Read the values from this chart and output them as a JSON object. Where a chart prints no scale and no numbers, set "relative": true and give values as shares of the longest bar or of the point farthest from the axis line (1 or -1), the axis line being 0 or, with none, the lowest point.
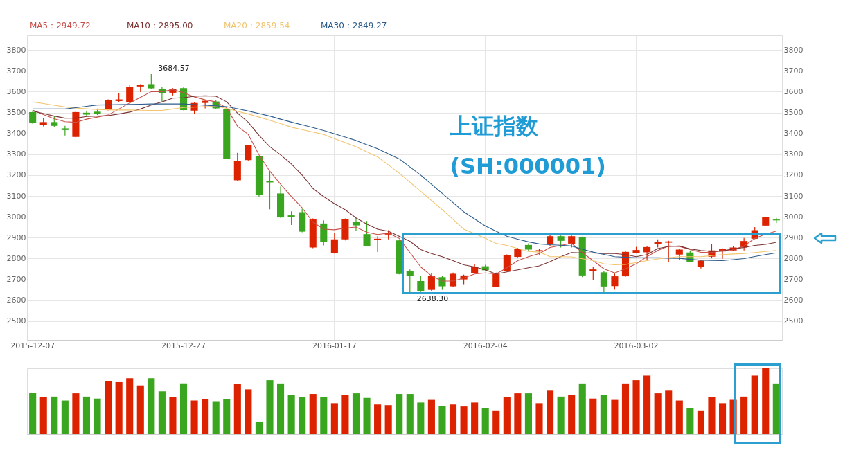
{
  "chart_data": [
    {
      "type": "candlestick",
      "categories": [
        "2015-12-07",
        null,
        null,
        null,
        null,
        null,
        null,
        null,
        null,
        null,
        null,
        null,
        null,
        null,
        "2015-12-27",
        null,
        null,
        null,
        null,
        null,
        null,
        null,
        null,
        null,
        null,
        null,
        null,
        null,
        "2016-01-17",
        null,
        null,
        null,
        null,
        null,
        null,
        null,
        null,
        null,
        null,
        null,
        null,
        null,
        "2016-02-04",
        null,
        null,
        null,
        null,
        null,
        null,
        null,
        null,
        null,
        null,
        null,
        null,
        null,
        "2016-03-02",
        null,
        null,
        null,
        null,
        null,
        null,
        null,
        null,
        null,
        null,
        null,
        null,
        null
      ],
      "ohlc": [
        [
          3502,
          3510,
          3445,
          3449
        ],
        [
          3441,
          3475,
          3434,
          3454
        ],
        [
          3454,
          3483,
          3429,
          3436
        ],
        [
          3424,
          3436,
          3390,
          3416
        ],
        [
          3383,
          3505,
          3380,
          3502
        ],
        [
          3499,
          3509,
          3480,
          3490
        ],
        [
          3504,
          3519,
          3488,
          3495
        ],
        [
          3512,
          3563,
          3510,
          3561
        ],
        [
          3555,
          3595,
          3549,
          3563
        ],
        [
          3549,
          3631,
          3546,
          3624
        ],
        [
          3625,
          3633,
          3598,
          3631
        ],
        [
          3633,
          3684.57,
          3614,
          3616
        ],
        [
          3614,
          3621,
          3553,
          3592
        ],
        [
          3595,
          3617,
          3582,
          3612
        ],
        [
          3617,
          3621,
          3510,
          3512
        ],
        [
          3509,
          3548,
          3495,
          3546
        ],
        [
          3546,
          3559,
          3520,
          3556
        ],
        [
          3553,
          3559,
          3518,
          3520
        ],
        [
          3517,
          3520,
          3276,
          3276
        ],
        [
          3175,
          3307,
          3170,
          3268
        ],
        [
          3272,
          3346,
          3270,
          3344
        ],
        [
          3291,
          3293,
          3097,
          3104
        ],
        [
          3172,
          3214,
          3036,
          3165
        ],
        [
          3112,
          3146,
          2995,
          2997
        ],
        [
          3007,
          3026,
          2961,
          2999
        ],
        [
          3022,
          3039,
          2926,
          2929
        ],
        [
          2853,
          2992,
          2850,
          2990
        ],
        [
          2968,
          2983,
          2863,
          2881
        ],
        [
          2826,
          2922,
          2824,
          2892
        ],
        [
          2892,
          2992,
          2887,
          2990
        ],
        [
          2975,
          2995,
          2934,
          2959
        ],
        [
          2917,
          2980,
          2859,
          2861
        ],
        [
          2889,
          2907,
          2831,
          2895
        ],
        [
          2915,
          2936,
          2892,
          2922
        ],
        [
          2887,
          2890,
          2724,
          2726
        ],
        [
          2739,
          2748,
          2638.3,
          2717
        ],
        [
          2692,
          2716,
          2640,
          2642
        ],
        [
          2650,
          2731,
          2645,
          2716
        ],
        [
          2711,
          2716,
          2650,
          2667
        ],
        [
          2667,
          2733,
          2665,
          2727
        ],
        [
          2700,
          2723,
          2677,
          2719
        ],
        [
          2731,
          2772,
          2729,
          2760
        ],
        [
          2763,
          2770,
          2742,
          2744
        ],
        [
          2665,
          2733,
          2662,
          2726
        ],
        [
          2739,
          2820,
          2737,
          2817
        ],
        [
          2808,
          2851,
          2806,
          2848
        ],
        [
          2865,
          2873,
          2838,
          2843
        ],
        [
          2834,
          2848,
          2819,
          2840
        ],
        [
          2868,
          2912,
          2860,
          2907
        ],
        [
          2907,
          2910,
          2853,
          2885
        ],
        [
          2870,
          2910,
          2853,
          2907
        ],
        [
          2902,
          2905,
          2711,
          2719
        ],
        [
          2739,
          2760,
          2697,
          2748
        ],
        [
          2734,
          2742,
          2639,
          2666
        ],
        [
          2668,
          2728,
          2651,
          2715
        ],
        [
          2715,
          2836,
          2713,
          2832
        ],
        [
          2827,
          2856,
          2825,
          2841
        ],
        [
          2830,
          2858,
          2790,
          2855
        ],
        [
          2868,
          2892,
          2853,
          2880
        ],
        [
          2876,
          2885,
          2782,
          2882
        ],
        [
          2819,
          2846,
          2795,
          2843
        ],
        [
          2829,
          2839,
          2783,
          2785
        ],
        [
          2760,
          2792,
          2753,
          2790
        ],
        [
          2809,
          2868,
          2801,
          2839
        ],
        [
          2834,
          2849,
          2799,
          2846
        ],
        [
          2839,
          2858,
          2836,
          2853
        ],
        [
          2853,
          2899,
          2839,
          2884
        ],
        [
          2895,
          2951,
          2893,
          2936
        ],
        [
          2958,
          3001,
          2954,
          2999
        ],
        [
          2987,
          2995,
          2970,
          2983
        ]
      ],
      "colors": [
        "#3aa51e",
        "#dd2200",
        "#3aa51e",
        "#3aa51e",
        "#dd2200",
        "#3aa51e",
        "#3aa51e",
        "#dd2200",
        "#dd2200",
        "#dd2200",
        "#dd2200",
        "#3aa51e",
        "#3aa51e",
        "#dd2200",
        "#3aa51e",
        "#dd2200",
        "#dd2200",
        "#3aa51e",
        "#3aa51e",
        "#dd2200",
        "#dd2200",
        "#3aa51e",
        "#3aa51e",
        "#3aa51e",
        "#3aa51e",
        "#3aa51e",
        "#dd2200",
        "#3aa51e",
        "#dd2200",
        "#dd2200",
        "#3aa51e",
        "#3aa51e",
        "#dd2200",
        "#dd2200",
        "#3aa51e",
        "#3aa51e",
        "#3aa51e",
        "#dd2200",
        "#3aa51e",
        "#dd2200",
        "#dd2200",
        "#dd2200",
        "#3aa51e",
        "#dd2200",
        "#dd2200",
        "#dd2200",
        "#3aa51e",
        "#dd2200",
        "#dd2200",
        "#3aa51e",
        "#dd2200",
        "#3aa51e",
        "#dd2200",
        "#3aa51e",
        "#dd2200",
        "#dd2200",
        "#dd2200",
        "#dd2200",
        "#dd2200",
        "#dd2200",
        "#dd2200",
        "#3aa51e",
        "#dd2200",
        "#dd2200",
        "#dd2200",
        "#dd2200",
        "#dd2200",
        "#dd2200",
        "#dd2200",
        "#3aa51e"
      ],
      "series": [
        {
          "name": "MA5：2949.72",
          "color": "#c9504a",
          "type": "line",
          "axis": "y2",
          "values": [
            3512,
            3490,
            3470,
            3456,
            3453,
            3468,
            3478,
            3488,
            3517,
            3546,
            3573,
            3600,
            3600,
            3610,
            3595,
            3575,
            3561,
            3551,
            3522,
            3434,
            3395,
            3297,
            3219,
            3156,
            3097,
            3043,
            2975,
            2941,
            2938,
            2946,
            2951,
            2926,
            2915,
            2922,
            2897,
            2829,
            2760,
            2717,
            2692,
            2692,
            2707,
            2726,
            2731,
            2726,
            2756,
            2790,
            2809,
            2824,
            2853,
            2863,
            2873,
            2829,
            2790,
            2751,
            2731,
            2751,
            2775,
            2809,
            2839,
            2860,
            2858,
            2843,
            2830,
            2829,
            2839,
            2843,
            2860,
            2897,
            2917,
            2932
          ]
        },
        {
          "name": "MA10：2895.00",
          "color": "#7b3434",
          "type": "line",
          "axis": "y2",
          "values": [
            3507,
            3495,
            3483,
            3473,
            3473,
            3481,
            3483,
            3485,
            3493,
            3502,
            3517,
            3536,
            3551,
            3569,
            3571,
            3578,
            3580,
            3578,
            3551,
            3497,
            3453,
            3390,
            3336,
            3297,
            3253,
            3200,
            3136,
            3097,
            3063,
            3034,
            2995,
            2965,
            2941,
            2931,
            2907,
            2883,
            2843,
            2824,
            2809,
            2790,
            2770,
            2760,
            2746,
            2726,
            2736,
            2746,
            2756,
            2765,
            2785,
            2809,
            2829,
            2827,
            2827,
            2824,
            2824,
            2819,
            2809,
            2819,
            2848,
            2858,
            2860,
            2846,
            2839,
            2834,
            2836,
            2846,
            2853,
            2863,
            2868,
            2878
          ]
        },
        {
          "name": "MA20：2859.54",
          "color": "#f2c46e",
          "type": "line",
          "axis": "y2",
          "values": [
            3551,
            3543,
            3535,
            3527,
            3522,
            3518,
            3514,
            3513,
            3512,
            3512,
            3511,
            3510,
            3510,
            3517,
            3524,
            3526,
            3528,
            3530,
            3520,
            3506,
            3493,
            3478,
            3463,
            3447,
            3430,
            3418,
            3406,
            3395,
            3375,
            3356,
            3336,
            3312,
            3288,
            3249,
            3210,
            3166,
            3122,
            3078,
            3034,
            2988,
            2941,
            2919,
            2897,
            2873,
            2863,
            2848,
            2834,
            2831,
            2809,
            2809,
            2808,
            2799,
            2790,
            2775,
            2770,
            2772,
            2781,
            2790,
            2798,
            2804,
            2809,
            2809,
            2809,
            2814,
            2819,
            2822,
            2824,
            2829,
            2834,
            2839
          ]
        },
        {
          "name": "MA30：2849.27",
          "color": "#2d5c8c",
          "type": "line",
          "axis": "y2",
          "values": [
            3517,
            3517,
            3517,
            3517,
            3523,
            3530,
            3536,
            3537,
            3538,
            3539,
            3540,
            3541,
            3541,
            3541,
            3541,
            3538,
            3535,
            3532,
            3528,
            3518,
            3507,
            3495,
            3483,
            3468,
            3454,
            3441,
            3428,
            3414,
            3398,
            3382,
            3366,
            3346,
            3327,
            3302,
            3278,
            3239,
            3200,
            3156,
            3112,
            3068,
            3024,
            2990,
            2956,
            2931,
            2907,
            2893,
            2880,
            2870,
            2866,
            2864,
            2860,
            2845,
            2831,
            2820,
            2809,
            2806,
            2804,
            2804,
            2804,
            2802,
            2801,
            2796,
            2792,
            2791,
            2790,
            2795,
            2800,
            2810,
            2819,
            2827
          ]
        }
      ],
      "ylim": [
        2410,
        3870
      ],
      "yticks": [
        2500,
        2600,
        2700,
        2800,
        2900,
        3000,
        3100,
        3200,
        3300,
        3400,
        3500,
        3600,
        3700,
        3800
      ],
      "y2lim": [
        2410,
        3870
      ],
      "y2ticks": [
        2500,
        2600,
        2700,
        2800,
        2900,
        3000,
        3100,
        3200,
        3300,
        3400,
        3500,
        3600,
        3700,
        3800
      ],
      "grid": true,
      "legend": "top left",
      "annotations": [
        "上证指数",
        "(SH:000001)",
        "3684.57",
        "2638.30"
      ]
    },
    {
      "type": "bar",
      "relative": true,
      "categories": [
        null,
        null,
        null,
        null,
        null,
        null,
        null,
        null,
        null,
        null,
        null,
        null,
        null,
        null,
        null,
        null,
        null,
        null,
        null,
        null,
        null,
        null,
        null,
        null,
        null,
        null,
        null,
        null,
        null,
        null,
        null,
        null,
        null,
        null,
        null,
        null,
        null,
        null,
        null,
        null,
        null,
        null,
        null,
        null,
        null,
        null,
        null,
        null,
        null,
        null,
        null,
        null,
        null,
        null,
        null,
        null,
        null,
        null,
        null,
        null,
        null,
        null,
        null,
        null,
        null,
        null,
        null,
        null,
        null,
        null
      ],
      "values": [
        0.63,
        0.56,
        0.57,
        0.51,
        0.62,
        0.57,
        0.54,
        0.8,
        0.79,
        0.85,
        0.74,
        0.85,
        0.65,
        0.56,
        0.77,
        0.51,
        0.53,
        0.5,
        0.53,
        0.76,
        0.68,
        0.19,
        0.82,
        0.77,
        0.59,
        0.56,
        0.61,
        0.56,
        0.47,
        0.59,
        0.62,
        0.55,
        0.45,
        0.44,
        0.61,
        0.61,
        0.48,
        0.52,
        0.43,
        0.45,
        0.42,
        0.48,
        0.39,
        0.36,
        0.56,
        0.62,
        0.62,
        0.47,
        0.66,
        0.57,
        0.6,
        0.77,
        0.54,
        0.59,
        0.52,
        0.77,
        0.82,
        0.89,
        0.62,
        0.66,
        0.51,
        0.39,
        0.36,
        0.56,
        0.47,
        0.52,
        0.57,
        0.89,
        1,
        0.77
      ],
      "colors": [
        "#3aa51e",
        "#dd2200",
        "#3aa51e",
        "#3aa51e",
        "#dd2200",
        "#3aa51e",
        "#3aa51e",
        "#dd2200",
        "#dd2200",
        "#dd2200",
        "#dd2200",
        "#3aa51e",
        "#3aa51e",
        "#dd2200",
        "#3aa51e",
        "#dd2200",
        "#dd2200",
        "#3aa51e",
        "#3aa51e",
        "#dd2200",
        "#dd2200",
        "#3aa51e",
        "#3aa51e",
        "#3aa51e",
        "#3aa51e",
        "#3aa51e",
        "#dd2200",
        "#3aa51e",
        "#dd2200",
        "#dd2200",
        "#3aa51e",
        "#3aa51e",
        "#dd2200",
        "#dd2200",
        "#3aa51e",
        "#3aa51e",
        "#3aa51e",
        "#dd2200",
        "#3aa51e",
        "#dd2200",
        "#dd2200",
        "#dd2200",
        "#3aa51e",
        "#dd2200",
        "#dd2200",
        "#dd2200",
        "#3aa51e",
        "#dd2200",
        "#dd2200",
        "#3aa51e",
        "#dd2200",
        "#3aa51e",
        "#dd2200",
        "#3aa51e",
        "#dd2200",
        "#dd2200",
        "#dd2200",
        "#dd2200",
        "#dd2200",
        "#dd2200",
        "#dd2200",
        "#3aa51e",
        "#dd2200",
        "#dd2200",
        "#dd2200",
        "#dd2200",
        "#dd2200",
        "#dd2200",
        "#dd2200",
        "#3aa51e"
      ]
    }
  ]
}
